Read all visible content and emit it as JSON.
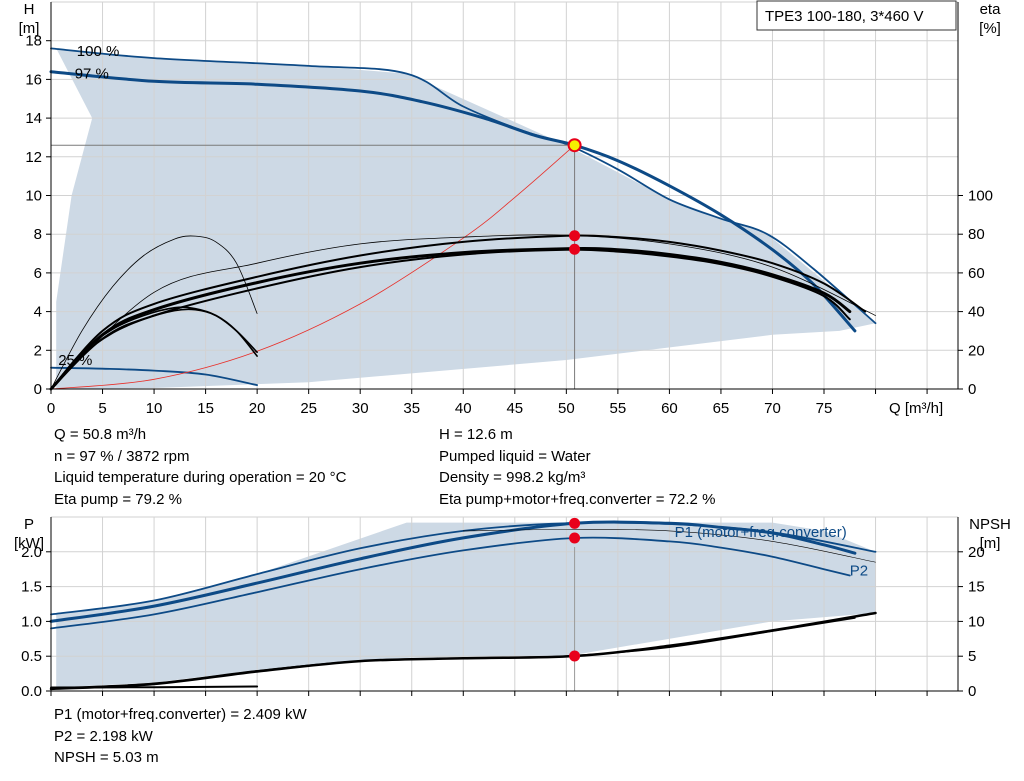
{
  "product_label": "TPE3 100-180, 3*460 V",
  "info_top_left": [
    "Q = 50.8 m³/h",
    "n = 97 % / 3872 rpm",
    "Liquid temperature during operation = 20 °C",
    "Eta pump = 79.2 %"
  ],
  "info_top_right": [
    "H = 12.6 m",
    "Pumped liquid = Water",
    "Density = 998.2 kg/m³",
    "Eta pump+motor+freq.converter = 72.2 %"
  ],
  "info_bottom": [
    "P1 (motor+freq.converter) = 2.409 kW",
    "P2 = 2.198 kW",
    "NPSH = 5.03 m"
  ],
  "colors": {
    "area_fill": "#cdd9e5",
    "curve_blue": "#0d4a86",
    "curve_black": "#000000",
    "system_curve": "#e8302a",
    "marker": "#e8001a",
    "duty_marker_fill": "#f5f000",
    "grid": "#d2d2d2"
  },
  "chart_data": [
    {
      "type": "line",
      "name": "head_efficiency",
      "xlabel": "Q [m³/h]",
      "ylabel_left": "H\n[m]",
      "ylabel_right": "eta\n[%]",
      "xlim": [
        0,
        88
      ],
      "x_ticks": [
        0,
        5,
        10,
        15,
        20,
        25,
        30,
        35,
        40,
        45,
        50,
        55,
        60,
        65,
        70,
        75
      ],
      "ylim_left": [
        0,
        20
      ],
      "y_ticks_left": [
        0,
        2,
        4,
        6,
        8,
        10,
        12,
        14,
        16,
        18
      ],
      "ylim_right": [
        0,
        200
      ],
      "y_ticks_right": [
        0,
        20,
        40,
        60,
        80,
        100
      ],
      "grid": true,
      "speed_labels": [
        {
          "text": "100 %",
          "x": 2.5,
          "y": 17.2
        },
        {
          "text": "97 %",
          "x": 2.3,
          "y": 16.05
        },
        {
          "text": "25 %",
          "x": 0.7,
          "y": 1.25
        }
      ],
      "operating_area": [
        [
          0.5,
          17.6
        ],
        [
          10,
          17.1
        ],
        [
          25,
          16.7
        ],
        [
          34.5,
          16.3
        ],
        [
          50,
          12.6
        ],
        [
          60,
          9.8
        ],
        [
          69.5,
          8.0
        ],
        [
          80,
          3.4
        ],
        [
          76.5,
          3.0
        ],
        [
          70,
          2.8
        ],
        [
          50,
          1.5
        ],
        [
          25,
          0.35
        ],
        [
          10,
          0.05
        ],
        [
          0.5,
          0
        ],
        [
          0.5,
          4.5
        ],
        [
          2,
          10
        ],
        [
          4,
          14
        ],
        [
          0.5,
          17.6
        ]
      ],
      "series": [
        {
          "name": "H max",
          "axis": "left",
          "color": "blue",
          "width": 1.8,
          "points": [
            [
              0,
              17.6
            ],
            [
              10,
              17.1
            ],
            [
              25,
              16.7
            ],
            [
              34.5,
              16.3
            ],
            [
              40,
              14.6
            ],
            [
              46,
              13.3
            ],
            [
              50,
              12.65
            ],
            [
              55,
              11.35
            ],
            [
              60,
              9.8
            ],
            [
              65,
              8.8
            ],
            [
              69.5,
              8.0
            ],
            [
              74,
              6.2
            ],
            [
              80,
              3.4
            ]
          ]
        },
        {
          "name": "H 97%",
          "axis": "left",
          "color": "blue",
          "width": 3,
          "points": [
            [
              0,
              16.4
            ],
            [
              10,
              15.9
            ],
            [
              20,
              15.75
            ],
            [
              30,
              15.4
            ],
            [
              36,
              14.85
            ],
            [
              42,
              14.0
            ],
            [
              47,
              13.1
            ],
            [
              50.8,
              12.6
            ],
            [
              55,
              11.8
            ],
            [
              60,
              10.5
            ],
            [
              65,
              9.0
            ],
            [
              70,
              7.2
            ],
            [
              74,
              5.4
            ],
            [
              78,
              3.0
            ]
          ]
        },
        {
          "name": "H 25%",
          "axis": "left",
          "color": "blue",
          "width": 1.8,
          "points": [
            [
              0,
              1.1
            ],
            [
              5,
              1.05
            ],
            [
              10,
              0.95
            ],
            [
              15,
              0.75
            ],
            [
              20,
              0.2
            ]
          ]
        },
        {
          "name": "System curve",
          "axis": "left",
          "color": "red",
          "width": 0.8,
          "points": [
            [
              0,
              0
            ],
            [
              10,
              0.5
            ],
            [
              20,
              1.95
            ],
            [
              30,
              4.4
            ],
            [
              40,
              7.8
            ],
            [
              45,
              9.9
            ],
            [
              50.8,
              12.6
            ]
          ]
        },
        {
          "name": "Eta pump thin",
          "axis": "left",
          "color": "black",
          "width": 0.8,
          "points": [
            [
              0,
              0
            ],
            [
              10,
              5.0
            ],
            [
              20,
              6.5
            ],
            [
              30,
              7.5
            ],
            [
              40,
              7.85
            ],
            [
              50,
              7.95
            ],
            [
              60,
              7.5
            ],
            [
              70,
              6.3
            ],
            [
              80,
              3.8
            ]
          ]
        },
        {
          "name": "Eta pump",
          "axis": "left",
          "color": "black",
          "width": 2,
          "points": [
            [
              0,
              0
            ],
            [
              5,
              3.0
            ],
            [
              10,
              4.4
            ],
            [
              20,
              5.8
            ],
            [
              30,
              6.9
            ],
            [
              40,
              7.6
            ],
            [
              50,
              7.92
            ],
            [
              55,
              7.85
            ],
            [
              60,
              7.6
            ],
            [
              65,
              7.15
            ],
            [
              70,
              6.5
            ],
            [
              75,
              5.45
            ],
            [
              79,
              4.0
            ]
          ]
        },
        {
          "name": "Eta pump+motor+freq.converter",
          "axis": "left",
          "color": "black",
          "width": 3,
          "points": [
            [
              0,
              0
            ],
            [
              5,
              2.8
            ],
            [
              10,
              4.1
            ],
            [
              20,
              5.5
            ],
            [
              30,
              6.5
            ],
            [
              40,
              7.05
            ],
            [
              50,
              7.25
            ],
            [
              55,
              7.2
            ],
            [
              60,
              6.95
            ],
            [
              65,
              6.55
            ],
            [
              70,
              5.9
            ],
            [
              75,
              4.95
            ],
            [
              77.5,
              4.0
            ]
          ]
        },
        {
          "name": "Eta pump 2",
          "axis": "left",
          "color": "black",
          "width": 2,
          "points": [
            [
              0,
              0
            ],
            [
              5,
              2.6
            ],
            [
              10,
              3.8
            ],
            [
              20,
              5.2
            ],
            [
              30,
              6.3
            ],
            [
              40,
              6.95
            ],
            [
              50,
              7.2
            ],
            [
              55,
              7.1
            ],
            [
              60,
              6.85
            ],
            [
              65,
              6.45
            ],
            [
              70,
              5.8
            ],
            [
              75,
              4.8
            ],
            [
              77.5,
              3.6
            ]
          ]
        },
        {
          "name": "Eta low speed thin",
          "axis": "left",
          "color": "black",
          "width": 0.8,
          "points": [
            [
              0,
              0
            ],
            [
              3,
              3.0
            ],
            [
              6,
              5.3
            ],
            [
              9,
              6.9
            ],
            [
              12,
              7.75
            ],
            [
              14,
              7.9
            ],
            [
              16,
              7.6
            ],
            [
              18,
              6.5
            ],
            [
              20,
              3.9
            ]
          ]
        },
        {
          "name": "Eta low speed 1",
          "axis": "left",
          "color": "black",
          "width": 1.6,
          "points": [
            [
              0,
              0
            ],
            [
              3,
              1.9
            ],
            [
              6,
              3.1
            ],
            [
              9,
              3.8
            ],
            [
              12,
              4.2
            ],
            [
              14,
              4.15
            ],
            [
              16,
              3.8
            ],
            [
              18,
              3.0
            ],
            [
              20,
              1.9
            ]
          ]
        },
        {
          "name": "Eta low speed 2",
          "axis": "left",
          "color": "black",
          "width": 1.6,
          "points": [
            [
              0,
              0
            ],
            [
              3,
              1.75
            ],
            [
              6,
              2.9
            ],
            [
              9,
              3.6
            ],
            [
              12,
              4.05
            ],
            [
              14,
              4.1
            ],
            [
              16,
              3.8
            ],
            [
              18,
              3.0
            ],
            [
              20,
              1.7
            ]
          ]
        }
      ],
      "operating_point": {
        "x": 50.8,
        "y": 12.6
      },
      "markers": [
        {
          "x": 50.8,
          "y": 7.92
        },
        {
          "x": 50.8,
          "y": 7.22
        }
      ]
    },
    {
      "type": "line",
      "name": "power_npsh",
      "ylabel_left": "P\n[kW]",
      "ylabel_right": "NPSH\n[m]",
      "xlim": [
        0,
        88
      ],
      "ylim_left": [
        0,
        2.5
      ],
      "y_ticks_left": [
        0.0,
        0.5,
        1.0,
        1.5,
        2.0
      ],
      "ylim_right": [
        0,
        25
      ],
      "y_ticks_right": [
        0,
        5,
        10,
        15,
        20
      ],
      "grid": true,
      "curve_labels": [
        {
          "text": "P1 (motor+freq.converter)",
          "x": 60.5,
          "y": 2.21
        },
        {
          "text": "P2",
          "x": 77.5,
          "y": 1.66
        }
      ],
      "operating_area": [
        [
          0.5,
          1.1
        ],
        [
          10,
          1.3
        ],
        [
          20,
          1.68
        ],
        [
          34.5,
          2.42
        ],
        [
          50,
          2.42
        ],
        [
          70,
          2.42
        ],
        [
          75,
          2.3
        ],
        [
          80,
          2.0
        ],
        [
          80,
          1.12
        ],
        [
          70,
          1.0
        ],
        [
          50,
          0.5
        ],
        [
          35,
          0.48
        ],
        [
          20,
          0.3
        ],
        [
          10,
          0.12
        ],
        [
          0.5,
          0.05
        ],
        [
          0.5,
          1.1
        ]
      ],
      "series": [
        {
          "name": "P1 max",
          "axis": "left",
          "color": "blue",
          "width": 1.8,
          "points": [
            [
              0,
              1.1
            ],
            [
              10,
              1.3
            ],
            [
              20,
              1.68
            ],
            [
              30,
              2.05
            ],
            [
              40,
              2.3
            ],
            [
              50,
              2.41
            ],
            [
              60,
              2.4
            ],
            [
              70,
              2.28
            ],
            [
              80,
              2.0
            ]
          ]
        },
        {
          "name": "P1 (motor+freq.converter)",
          "axis": "left",
          "color": "blue",
          "width": 3,
          "points": [
            [
              0,
              1.0
            ],
            [
              10,
              1.22
            ],
            [
              20,
              1.55
            ],
            [
              30,
              1.9
            ],
            [
              40,
              2.2
            ],
            [
              50.8,
              2.409
            ],
            [
              60,
              2.41
            ],
            [
              65,
              2.35
            ],
            [
              70,
              2.27
            ],
            [
              75,
              2.1
            ],
            [
              78,
              1.98
            ]
          ]
        },
        {
          "name": "P2",
          "axis": "left",
          "color": "blue",
          "width": 1.8,
          "points": [
            [
              0,
              0.9
            ],
            [
              10,
              1.1
            ],
            [
              20,
              1.42
            ],
            [
              30,
              1.75
            ],
            [
              40,
              2.02
            ],
            [
              50.8,
              2.198
            ],
            [
              60,
              2.15
            ],
            [
              65,
              2.06
            ],
            [
              70,
              1.93
            ],
            [
              75,
              1.75
            ],
            [
              77.5,
              1.66
            ]
          ]
        },
        {
          "name": "P thin",
          "axis": "left",
          "color": "black",
          "width": 0.6,
          "points": [
            [
              40,
              2.3
            ],
            [
              50,
              2.32
            ],
            [
              60,
              2.3
            ],
            [
              70,
              2.15
            ],
            [
              80,
              1.85
            ]
          ]
        },
        {
          "name": "NPSH",
          "axis": "right",
          "color": "black",
          "width": 2.5,
          "points": [
            [
              0,
              0.3
            ],
            [
              10,
              1.0
            ],
            [
              20,
              2.8
            ],
            [
              30,
              4.3
            ],
            [
              40,
              4.7
            ],
            [
              50.8,
              5.03
            ],
            [
              60,
              6.5
            ],
            [
              70,
              8.7
            ],
            [
              80,
              11.2
            ]
          ]
        },
        {
          "name": "NPSH 2",
          "axis": "right",
          "color": "black",
          "width": 1.6,
          "points": [
            [
              0,
              0.4
            ],
            [
              10,
              1.1
            ],
            [
              20,
              2.9
            ],
            [
              30,
              4.3
            ],
            [
              40,
              4.7
            ],
            [
              50,
              5.0
            ],
            [
              60,
              6.3
            ],
            [
              70,
              8.6
            ],
            [
              78,
              10.5
            ]
          ]
        },
        {
          "name": "NPSH low speed",
          "axis": "right",
          "color": "black",
          "width": 2,
          "points": [
            [
              0,
              0.5
            ],
            [
              10,
              0.55
            ],
            [
              20,
              0.65
            ]
          ]
        }
      ],
      "markers": [
        {
          "x": 50.8,
          "y": 2.409
        },
        {
          "x": 50.8,
          "y": 2.198
        },
        {
          "x": 50.8,
          "y": 0.503
        }
      ]
    }
  ]
}
